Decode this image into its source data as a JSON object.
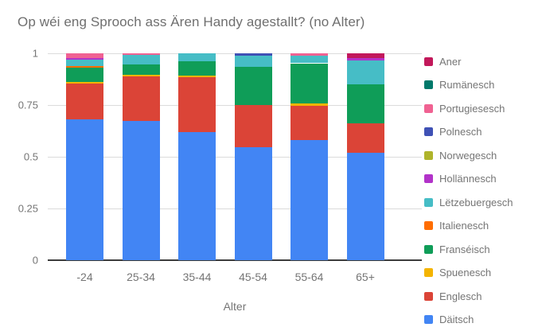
{
  "title": "Op wéi eng Sprooch ass Ären Handy agestallt? (no Alter)",
  "axes": {
    "x_title": "Alter",
    "x_tick_labels": [
      "-24",
      "25-34",
      "35-44",
      "45-54",
      "55-64",
      "65+"
    ],
    "y_ticks": [
      {
        "label": "1",
        "value": 1
      },
      {
        "label": "0.75",
        "value": 0.75
      },
      {
        "label": "0.5",
        "value": 0.5
      },
      {
        "label": "0.25",
        "value": 0.25
      },
      {
        "label": "0",
        "value": 0
      }
    ],
    "y_range": [
      0,
      1
    ],
    "gridlines": true
  },
  "colors": {
    "background": "#ffffff",
    "title_text": "#6f6f6f",
    "axis_text": "#757575",
    "gridline": "#dbdbdb",
    "baseline": "#3c3c3c"
  },
  "legend": {
    "position": "right",
    "order_note": "displayed top-to-bottom is reverse of stacking order"
  },
  "chart_data": {
    "type": "bar",
    "stacked": true,
    "normalized_100pct": true,
    "title": "Op wéi eng Sprooch ass Ären Handy agestallt? (no Alter)",
    "xlabel": "Alter",
    "ylabel": "",
    "ylim": [
      0,
      1
    ],
    "categories": [
      "-24",
      "25-34",
      "35-44",
      "45-54",
      "55-64",
      "65+"
    ],
    "series": [
      {
        "name": "Däitsch",
        "color": "#4285F4",
        "values": [
          0.68,
          0.675,
          0.62,
          0.548,
          0.58,
          0.52
        ]
      },
      {
        "name": "Englesch",
        "color": "#DB4437",
        "values": [
          0.175,
          0.215,
          0.266,
          0.202,
          0.168,
          0.14
        ]
      },
      {
        "name": "Spuenesch",
        "color": "#F4B400",
        "values": [
          0.006,
          0.007,
          0.007,
          0,
          0.009,
          0
        ]
      },
      {
        "name": "Franséisch",
        "color": "#0F9D58",
        "values": [
          0.068,
          0.048,
          0.07,
          0.185,
          0.195,
          0.19
        ]
      },
      {
        "name": "Italienesch",
        "color": "#FF6D01",
        "values": [
          0.008,
          0,
          0,
          0,
          0,
          0
        ]
      },
      {
        "name": "Lëtzebuergesch",
        "color": "#46BDC6",
        "values": [
          0.032,
          0.047,
          0.037,
          0.055,
          0.038,
          0.115
        ]
      },
      {
        "name": "Hollännesch",
        "color": "#B233C9",
        "values": [
          0.008,
          0,
          0,
          0,
          0,
          0.013
        ]
      },
      {
        "name": "Norwegesch",
        "color": "#AFB42B",
        "values": [
          0,
          0,
          0,
          0,
          0,
          0
        ]
      },
      {
        "name": "Polnesch",
        "color": "#3F51B5",
        "values": [
          0,
          0,
          0,
          0.01,
          0,
          0
        ]
      },
      {
        "name": "Portugiesesch",
        "color": "#F06292",
        "values": [
          0.023,
          0.008,
          0,
          0,
          0.01,
          0
        ]
      },
      {
        "name": "Rumänesch",
        "color": "#00796B",
        "values": [
          0,
          0,
          0,
          0,
          0,
          0
        ]
      },
      {
        "name": "Aner",
        "color": "#C2185B",
        "values": [
          0,
          0,
          0,
          0,
          0,
          0.022
        ]
      }
    ]
  }
}
